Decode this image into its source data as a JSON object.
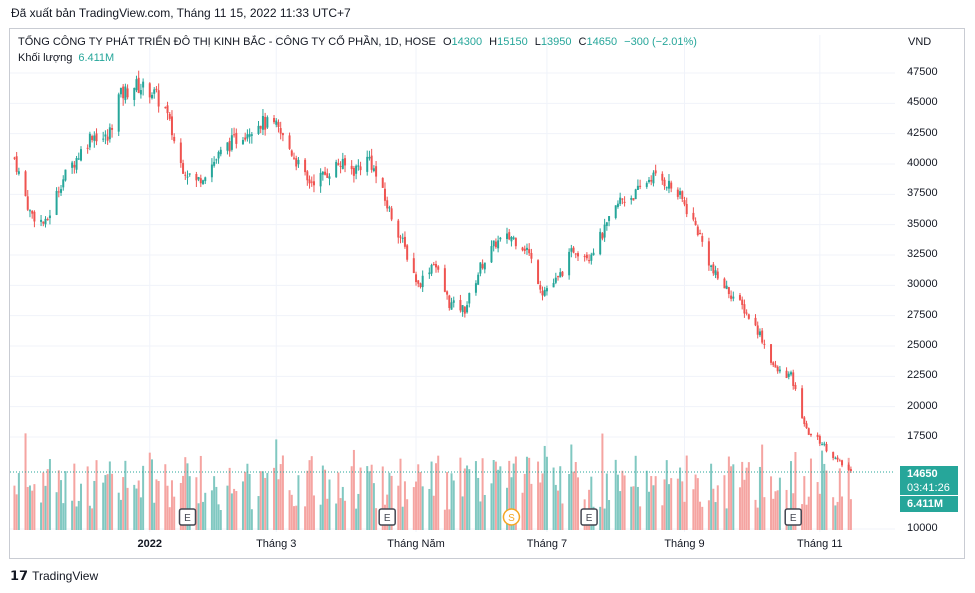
{
  "publisher": "Đã xuất bản TradingView.com, Tháng 11 15, 2022 11:33 UTC+7",
  "legend": {
    "title": "TỔNG CÔNG TY PHÁT TRIỂN ĐÔ THỊ KINH BẮC - CÔNG TY CỔ PHẦN, 1D, HOSE",
    "o_label": "O",
    "o_value": "14300",
    "h_label": "H",
    "h_value": "15150",
    "l_label": "L",
    "l_value": "13950",
    "c_label": "C",
    "c_value": "14650",
    "change": "−300 (−2.01%)"
  },
  "volume_legend": {
    "label": "Khối lượng",
    "value": "6.411M"
  },
  "axis_unit": "VND",
  "badges": {
    "price": "14650",
    "countdown": "03:41:26",
    "volume": "6.411M"
  },
  "footer_logo": "TradingView",
  "colors": {
    "up": "#26a69a",
    "down": "#ef5350",
    "up_vol": "#80c8c1",
    "down_vol": "#f5a4a1",
    "grid": "#f0f3fa",
    "price_line": "#26a69a",
    "earnings_badge": "#434651",
    "split_badge": "#f5a623"
  },
  "chart_data": {
    "type": "candlestick",
    "y_ticks": [
      "47500",
      "45000",
      "42500",
      "40000",
      "37500",
      "35000",
      "32500",
      "30000",
      "27500",
      "25000",
      "22500",
      "20000",
      "17500",
      "10000"
    ],
    "y_tick_values": [
      47500,
      45000,
      42500,
      40000,
      37500,
      35000,
      32500,
      30000,
      27500,
      25000,
      22500,
      20000,
      17500,
      10000
    ],
    "ylim": [
      10000,
      48500
    ],
    "x_ticks": [
      {
        "label": "2022",
        "date": "2022-01-03",
        "bold": true
      },
      {
        "label": "Tháng 3",
        "date": "2022-03-01",
        "bold": false
      },
      {
        "label": "Tháng Năm",
        "date": "2022-05-03",
        "bold": false
      },
      {
        "label": "Tháng 7",
        "date": "2022-07-01",
        "bold": false
      },
      {
        "label": "Tháng 9",
        "date": "2022-09-01",
        "bold": false
      },
      {
        "label": "Tháng 11",
        "date": "2022-11-01",
        "bold": false
      }
    ],
    "price_path": [
      [
        "2021-11-03",
        40500
      ],
      [
        "2021-11-10",
        36000
      ],
      [
        "2021-11-17",
        35000
      ],
      [
        "2021-11-24",
        38500
      ],
      [
        "2021-12-01",
        40500
      ],
      [
        "2021-12-08",
        42500
      ],
      [
        "2021-12-15",
        42000
      ],
      [
        "2021-12-20",
        45500
      ],
      [
        "2021-12-27",
        46500
      ],
      [
        "2022-01-04",
        46000
      ],
      [
        "2022-01-10",
        44500
      ],
      [
        "2022-01-17",
        40000
      ],
      [
        "2022-01-24",
        38500
      ],
      [
        "2022-02-07",
        41500
      ],
      [
        "2022-02-14",
        42500
      ],
      [
        "2022-02-21",
        43500
      ],
      [
        "2022-03-01",
        43000
      ],
      [
        "2022-03-08",
        41000
      ],
      [
        "2022-03-15",
        38500
      ],
      [
        "2022-03-22",
        39000
      ],
      [
        "2022-03-29",
        40000
      ],
      [
        "2022-04-05",
        39500
      ],
      [
        "2022-04-12",
        40500
      ],
      [
        "2022-04-19",
        37000
      ],
      [
        "2022-04-26",
        34000
      ],
      [
        "2022-05-04",
        30000
      ],
      [
        "2022-05-11",
        32000
      ],
      [
        "2022-05-18",
        28500
      ],
      [
        "2022-05-25",
        28000
      ],
      [
        "2022-06-01",
        31500
      ],
      [
        "2022-06-08",
        33500
      ],
      [
        "2022-06-15",
        34000
      ],
      [
        "2022-06-22",
        33000
      ],
      [
        "2022-06-29",
        29500
      ],
      [
        "2022-07-06",
        30500
      ],
      [
        "2022-07-13",
        33000
      ],
      [
        "2022-07-20",
        32500
      ],
      [
        "2022-07-27",
        34500
      ],
      [
        "2022-08-03",
        37000
      ],
      [
        "2022-08-10",
        37500
      ],
      [
        "2022-08-17",
        39000
      ],
      [
        "2022-08-24",
        38500
      ],
      [
        "2022-08-31",
        37000
      ],
      [
        "2022-09-07",
        34500
      ],
      [
        "2022-09-14",
        31000
      ],
      [
        "2022-09-21",
        29500
      ],
      [
        "2022-09-28",
        28000
      ],
      [
        "2022-10-05",
        26000
      ],
      [
        "2022-10-12",
        23000
      ],
      [
        "2022-10-19",
        22500
      ],
      [
        "2022-10-26",
        18000
      ],
      [
        "2022-11-02",
        17000
      ],
      [
        "2022-11-09",
        15500
      ],
      [
        "2022-11-15",
        14650
      ]
    ],
    "last": {
      "date": "2022-11-15",
      "open": 14300,
      "high": 15150,
      "low": 13950,
      "close": 14650,
      "volume": "6.411M"
    },
    "events": [
      {
        "type": "earnings",
        "label": "E",
        "date": "2022-01-20"
      },
      {
        "type": "earnings",
        "label": "E",
        "date": "2022-04-20"
      },
      {
        "type": "split",
        "label": "S",
        "date": "2022-06-15"
      },
      {
        "type": "earnings",
        "label": "E",
        "date": "2022-07-20"
      },
      {
        "type": "earnings",
        "label": "E",
        "date": "2022-10-20"
      }
    ],
    "grid": true
  }
}
